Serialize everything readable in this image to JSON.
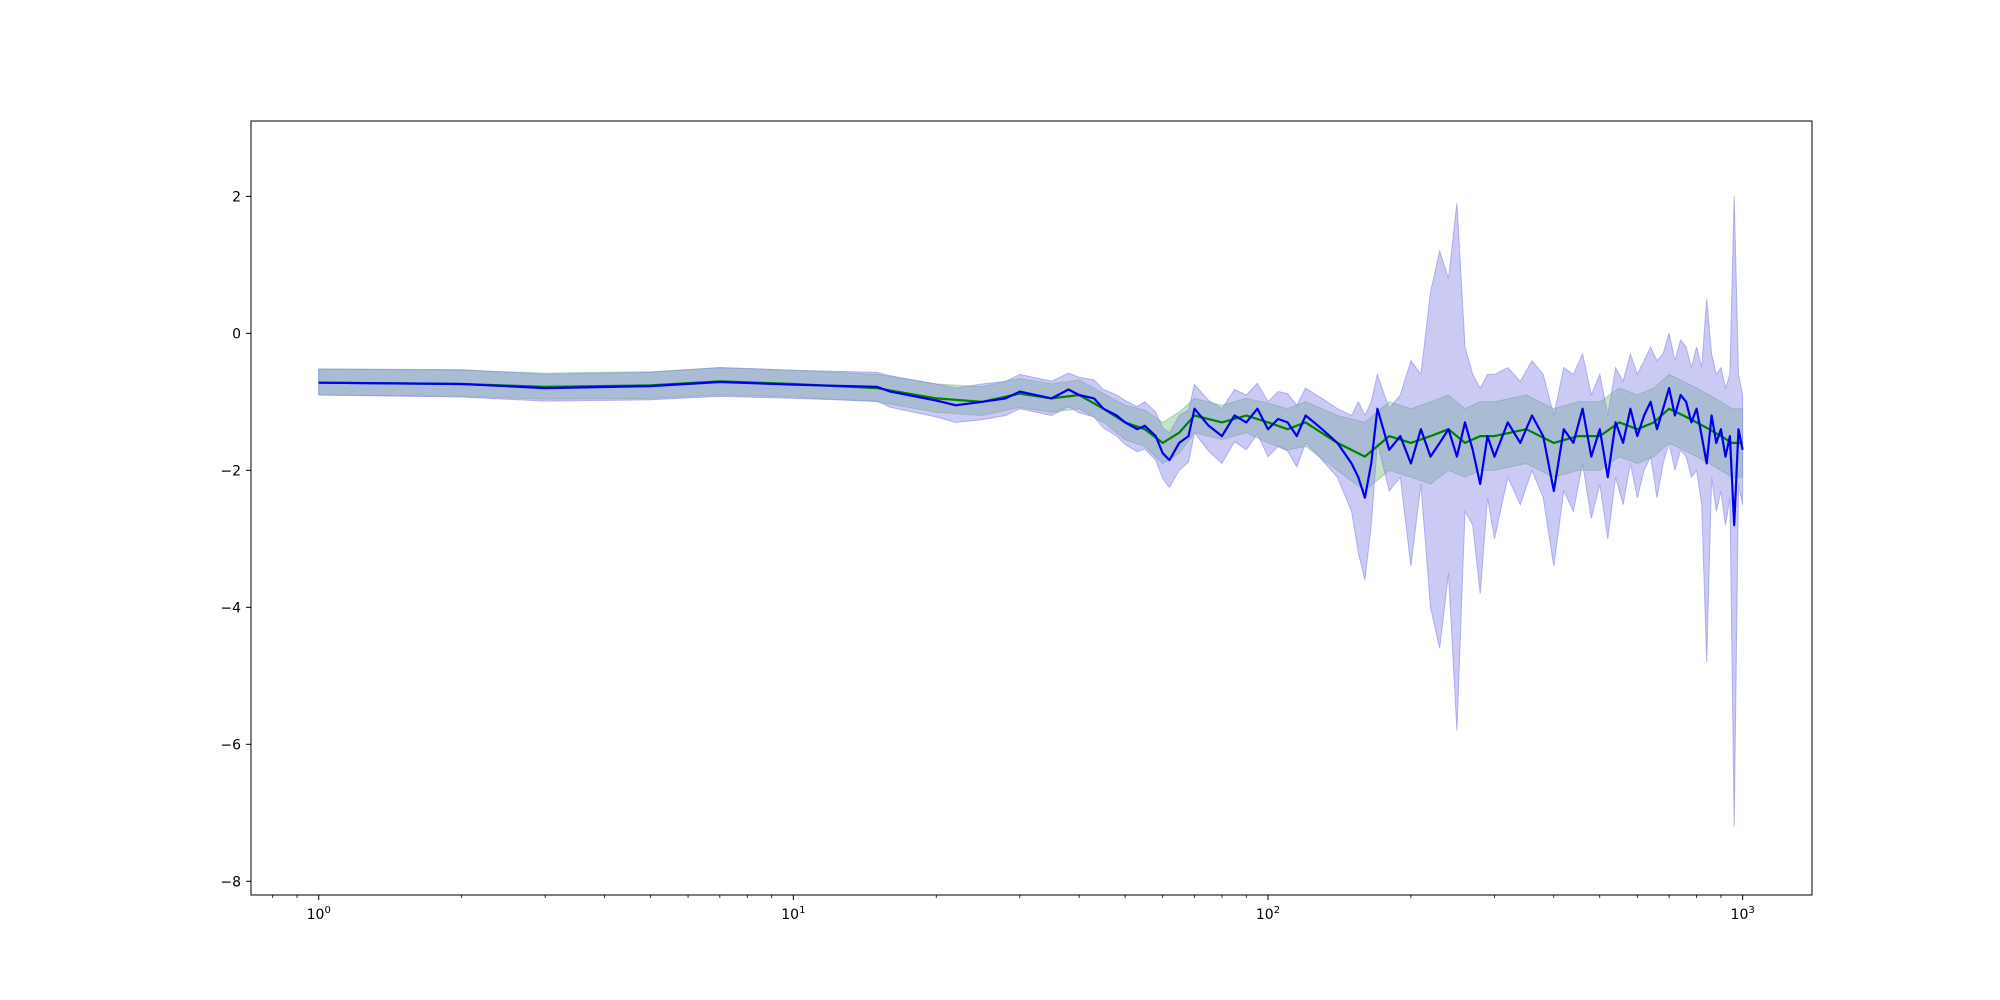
{
  "chart_data": {
    "type": "line",
    "title": "",
    "xlabel": "",
    "ylabel": "",
    "xscale": "log",
    "xlim": [
      0.72,
      1400
    ],
    "ylim": [
      -8.2,
      3.1
    ],
    "grid": false,
    "legend": "none",
    "x_ticks": [
      {
        "value": 1,
        "base": "10",
        "exp": "0"
      },
      {
        "value": 10,
        "base": "10",
        "exp": "1"
      },
      {
        "value": 100,
        "base": "10",
        "exp": "2"
      },
      {
        "value": 1000,
        "base": "10",
        "exp": "3"
      }
    ],
    "y_ticks": [
      {
        "value": 2,
        "label": "2"
      },
      {
        "value": 0,
        "label": "0"
      },
      {
        "value": -2,
        "label": "−2"
      },
      {
        "value": -4,
        "label": "−4"
      },
      {
        "value": -6,
        "label": "−6"
      },
      {
        "value": -8,
        "label": "−8"
      }
    ],
    "series": [
      {
        "color": "#008000",
        "band_color": "#7fc27f",
        "x": [
          1,
          2,
          3,
          5,
          7,
          10,
          15,
          20,
          25,
          30,
          35,
          40,
          45,
          50,
          55,
          60,
          65,
          70,
          80,
          90,
          100,
          110,
          120,
          140,
          160,
          180,
          200,
          220,
          240,
          260,
          280,
          300,
          350,
          400,
          450,
          500,
          550,
          600,
          650,
          700,
          750,
          800,
          850,
          900,
          950,
          1000
        ],
        "values": [
          -0.72,
          -0.74,
          -0.78,
          -0.76,
          -0.7,
          -0.74,
          -0.8,
          -0.95,
          -1.0,
          -0.88,
          -0.95,
          -0.9,
          -1.1,
          -1.3,
          -1.4,
          -1.6,
          -1.45,
          -1.2,
          -1.3,
          -1.2,
          -1.3,
          -1.4,
          -1.3,
          -1.6,
          -1.8,
          -1.5,
          -1.6,
          -1.5,
          -1.4,
          -1.6,
          -1.5,
          -1.5,
          -1.4,
          -1.6,
          -1.5,
          -1.5,
          -1.3,
          -1.4,
          -1.3,
          -1.1,
          -1.2,
          -1.3,
          -1.4,
          -1.5,
          -1.6,
          -1.6
        ],
        "lower": [
          -0.9,
          -0.92,
          -0.96,
          -0.95,
          -0.9,
          -0.93,
          -1.0,
          -1.15,
          -1.2,
          -1.08,
          -1.15,
          -1.1,
          -1.3,
          -1.55,
          -1.65,
          -1.9,
          -1.75,
          -1.45,
          -1.55,
          -1.45,
          -1.6,
          -1.7,
          -1.65,
          -2.0,
          -2.3,
          -2.0,
          -2.1,
          -2.2,
          -2.0,
          -2.1,
          -2.0,
          -2.0,
          -1.9,
          -2.1,
          -2.0,
          -2.0,
          -1.8,
          -1.9,
          -1.8,
          -1.6,
          -1.7,
          -1.8,
          -1.9,
          -2.0,
          -2.1,
          -2.1
        ],
        "upper": [
          -0.52,
          -0.54,
          -0.58,
          -0.56,
          -0.5,
          -0.54,
          -0.6,
          -0.74,
          -0.78,
          -0.66,
          -0.74,
          -0.68,
          -0.88,
          -1.05,
          -1.12,
          -1.3,
          -1.15,
          -0.95,
          -1.05,
          -0.95,
          -1.02,
          -1.1,
          -1.0,
          -1.2,
          -1.3,
          -1.0,
          -1.1,
          -1.0,
          -0.9,
          -1.1,
          -1.0,
          -1.0,
          -0.9,
          -1.1,
          -1.0,
          -1.0,
          -0.8,
          -0.9,
          -0.8,
          -0.6,
          -0.7,
          -0.8,
          -0.9,
          -1.0,
          -1.1,
          -1.1
        ]
      },
      {
        "color": "#0000ee",
        "band_color": "#8a8ae6",
        "x": [
          1,
          2,
          3,
          5,
          7,
          10,
          15,
          16,
          20,
          22,
          25,
          28,
          30,
          35,
          38,
          40,
          43,
          45,
          48,
          50,
          53,
          55,
          58,
          60,
          62,
          65,
          68,
          70,
          75,
          80,
          85,
          90,
          95,
          100,
          105,
          110,
          115,
          120,
          125,
          130,
          140,
          150,
          155,
          160,
          165,
          170,
          180,
          190,
          200,
          210,
          220,
          230,
          240,
          250,
          260,
          270,
          280,
          290,
          300,
          320,
          340,
          360,
          380,
          400,
          420,
          440,
          460,
          480,
          500,
          520,
          540,
          560,
          580,
          600,
          620,
          640,
          660,
          680,
          700,
          720,
          740,
          760,
          780,
          800,
          820,
          840,
          860,
          880,
          900,
          920,
          940,
          960,
          980,
          1000
        ],
        "values": [
          -0.72,
          -0.74,
          -0.8,
          -0.77,
          -0.71,
          -0.75,
          -0.78,
          -0.85,
          -0.98,
          -1.05,
          -1.0,
          -0.95,
          -0.85,
          -0.95,
          -0.82,
          -0.9,
          -0.95,
          -1.1,
          -1.2,
          -1.3,
          -1.4,
          -1.35,
          -1.5,
          -1.75,
          -1.85,
          -1.6,
          -1.5,
          -1.1,
          -1.35,
          -1.5,
          -1.2,
          -1.3,
          -1.1,
          -1.4,
          -1.25,
          -1.3,
          -1.5,
          -1.2,
          -1.3,
          -1.4,
          -1.6,
          -1.9,
          -2.1,
          -2.4,
          -1.9,
          -1.1,
          -1.7,
          -1.5,
          -1.9,
          -1.4,
          -1.8,
          -1.6,
          -1.4,
          -1.8,
          -1.3,
          -1.7,
          -2.2,
          -1.5,
          -1.8,
          -1.3,
          -1.6,
          -1.2,
          -1.5,
          -2.3,
          -1.4,
          -1.6,
          -1.1,
          -1.8,
          -1.4,
          -2.1,
          -1.3,
          -1.6,
          -1.1,
          -1.5,
          -1.2,
          -1.0,
          -1.4,
          -1.1,
          -0.8,
          -1.2,
          -0.9,
          -1.0,
          -1.3,
          -1.1,
          -1.5,
          -1.9,
          -1.2,
          -1.6,
          -1.4,
          -1.8,
          -1.5,
          -2.8,
          -1.4,
          -1.7
        ],
        "lower": [
          -0.9,
          -0.93,
          -0.99,
          -0.97,
          -0.92,
          -0.95,
          -0.99,
          -1.08,
          -1.22,
          -1.3,
          -1.26,
          -1.2,
          -1.1,
          -1.2,
          -1.07,
          -1.16,
          -1.22,
          -1.38,
          -1.5,
          -1.62,
          -1.73,
          -1.69,
          -1.85,
          -2.12,
          -2.25,
          -2.0,
          -1.88,
          -1.45,
          -1.72,
          -1.9,
          -1.58,
          -1.7,
          -1.47,
          -1.8,
          -1.65,
          -1.72,
          -1.95,
          -1.6,
          -1.72,
          -1.85,
          -2.1,
          -2.6,
          -3.2,
          -3.6,
          -2.8,
          -1.6,
          -2.3,
          -2.1,
          -3.4,
          -2.2,
          -4.0,
          -4.6,
          -3.5,
          -5.8,
          -2.6,
          -2.8,
          -3.8,
          -2.4,
          -3.0,
          -2.1,
          -2.5,
          -2.0,
          -2.4,
          -3.4,
          -2.3,
          -2.6,
          -1.9,
          -2.7,
          -2.2,
          -3.0,
          -2.1,
          -2.5,
          -1.9,
          -2.4,
          -2.0,
          -1.8,
          -2.4,
          -1.9,
          -1.6,
          -2.0,
          -1.7,
          -1.8,
          -2.1,
          -2.0,
          -2.5,
          -4.8,
          -2.1,
          -2.6,
          -2.3,
          -2.8,
          -2.4,
          -7.2,
          -2.2,
          -2.5
        ],
        "upper": [
          -0.52,
          -0.53,
          -0.6,
          -0.57,
          -0.5,
          -0.54,
          -0.57,
          -0.62,
          -0.74,
          -0.8,
          -0.74,
          -0.7,
          -0.6,
          -0.7,
          -0.58,
          -0.64,
          -0.68,
          -0.82,
          -0.9,
          -0.98,
          -1.07,
          -1.0,
          -1.15,
          -1.38,
          -1.45,
          -1.2,
          -1.12,
          -0.75,
          -0.98,
          -1.1,
          -0.82,
          -0.9,
          -0.73,
          -1.0,
          -0.85,
          -0.88,
          -1.05,
          -0.8,
          -0.88,
          -0.95,
          -1.1,
          -1.2,
          -1.0,
          -1.2,
          -1.0,
          -0.6,
          -1.1,
          -0.9,
          -0.4,
          -0.6,
          0.6,
          1.2,
          0.8,
          1.9,
          -0.2,
          -0.6,
          -0.8,
          -0.6,
          -0.6,
          -0.5,
          -0.7,
          -0.4,
          -0.6,
          -1.2,
          -0.5,
          -0.6,
          -0.3,
          -0.9,
          -0.6,
          -1.2,
          -0.5,
          -0.7,
          -0.3,
          -0.6,
          -0.4,
          -0.2,
          -0.4,
          -0.3,
          0.0,
          -0.4,
          -0.1,
          -0.2,
          -0.5,
          -0.2,
          -0.5,
          0.5,
          -0.3,
          -0.6,
          -0.5,
          -0.8,
          -0.6,
          2.0,
          -0.6,
          -0.9
        ]
      }
    ]
  }
}
